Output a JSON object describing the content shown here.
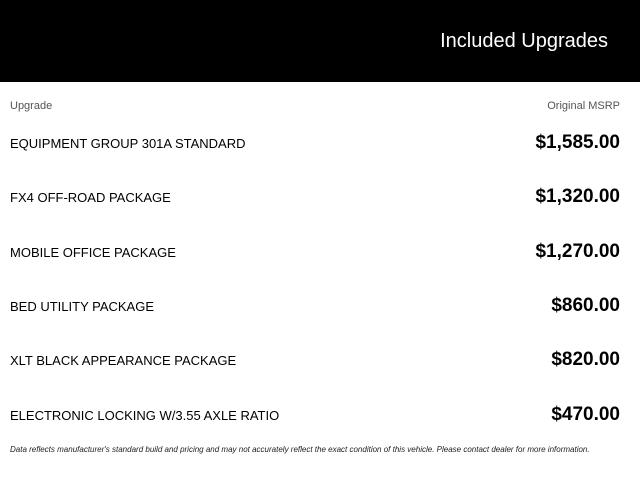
{
  "header": {
    "title": "Included Upgrades",
    "background": "#000000"
  },
  "columns": {
    "upgrade": "Upgrade",
    "msrp": "Original MSRP"
  },
  "rows": [
    {
      "name": "EQUIPMENT GROUP 301A STANDARD",
      "price": "$1,585.00"
    },
    {
      "name": "FX4 OFF-ROAD PACKAGE",
      "price": "$1,320.00"
    },
    {
      "name": "MOBILE OFFICE PACKAGE",
      "price": "$1,270.00"
    },
    {
      "name": "BED UTILITY PACKAGE",
      "price": "$860.00"
    },
    {
      "name": "XLT BLACK APPEARANCE PACKAGE",
      "price": "$820.00"
    },
    {
      "name": "ELECTRONIC LOCKING W/3.55 AXLE RATIO",
      "price": "$470.00"
    }
  ],
  "disclaimer": "Data reflects manufacturer's standard build and pricing and may not accurately reflect the exact condition of this vehicle. Please contact dealer for more information."
}
